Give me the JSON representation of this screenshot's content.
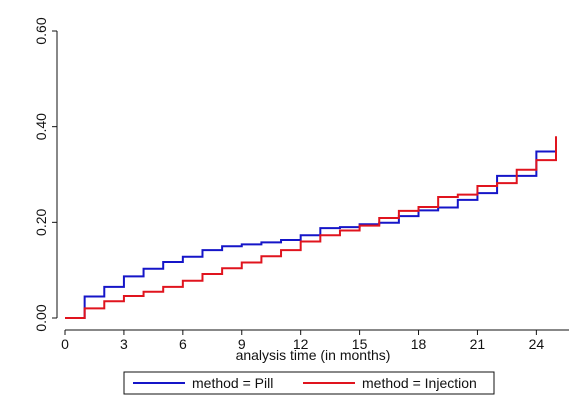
{
  "chart_data": {
    "type": "line",
    "step": true,
    "title": "",
    "xlabel": "analysis time (in months)",
    "ylabel": "",
    "xlim": [
      0,
      25
    ],
    "ylim": [
      0,
      0.6
    ],
    "x_ticks": [
      0,
      3,
      6,
      9,
      12,
      15,
      18,
      21,
      24
    ],
    "x_tick_labels": [
      "0",
      "3",
      "6",
      "9",
      "12",
      "15",
      "18",
      "21",
      "24"
    ],
    "y_ticks": [
      0,
      0.2,
      0.4,
      0.6
    ],
    "y_tick_labels": [
      "0.00",
      "0.20",
      "0.40",
      "0.60"
    ],
    "grid": false,
    "legend_position": "bottom",
    "series": [
      {
        "name": "method = Pill",
        "color": "#1515c8",
        "x": [
          0,
          1,
          2,
          3,
          4,
          5,
          6,
          7,
          8,
          9,
          10,
          11,
          12,
          13,
          14,
          15,
          16,
          17,
          18,
          19,
          20,
          21,
          22,
          23,
          24,
          25
        ],
        "y": [
          0.0,
          0.045,
          0.065,
          0.087,
          0.103,
          0.117,
          0.128,
          0.142,
          0.15,
          0.154,
          0.158,
          0.163,
          0.173,
          0.188,
          0.19,
          0.196,
          0.199,
          0.213,
          0.225,
          0.231,
          0.247,
          0.261,
          0.297,
          0.297,
          0.348,
          0.348
        ]
      },
      {
        "name": "method = Injection",
        "color": "#e0141e",
        "x": [
          0,
          1,
          2,
          3,
          4,
          5,
          6,
          7,
          8,
          9,
          10,
          11,
          12,
          13,
          14,
          15,
          16,
          17,
          18,
          19,
          20,
          21,
          22,
          23,
          24,
          25
        ],
        "y": [
          0.0,
          0.02,
          0.035,
          0.046,
          0.055,
          0.065,
          0.078,
          0.092,
          0.104,
          0.116,
          0.129,
          0.142,
          0.16,
          0.173,
          0.183,
          0.193,
          0.209,
          0.224,
          0.232,
          0.253,
          0.258,
          0.276,
          0.282,
          0.31,
          0.33,
          0.38
        ]
      }
    ]
  }
}
